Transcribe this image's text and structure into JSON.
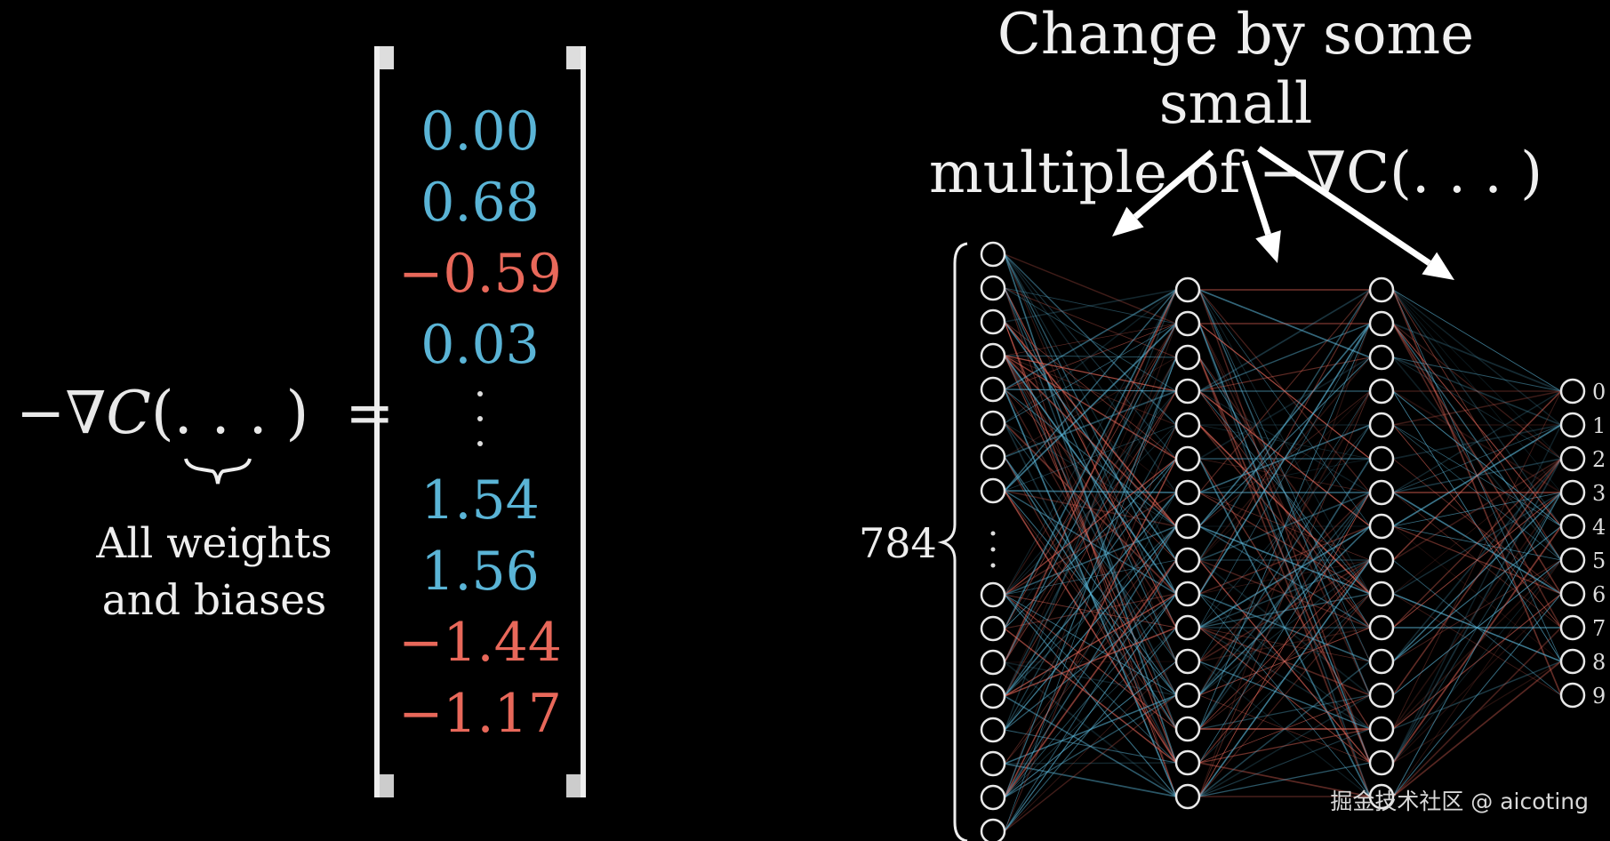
{
  "equation": {
    "minus": "−",
    "nabla": "∇",
    "cost": "C",
    "args": "(. . . )",
    "equals": "="
  },
  "caption": {
    "line1": "All weights",
    "line2": "and biases"
  },
  "gradient_vector": {
    "entries_top": [
      {
        "text": "0.00",
        "sign": "pos"
      },
      {
        "text": "0.68",
        "sign": "pos"
      },
      {
        "text": "−0.59",
        "sign": "neg"
      },
      {
        "text": "0.03",
        "sign": "pos"
      }
    ],
    "entries_bottom": [
      {
        "text": "1.54",
        "sign": "pos"
      },
      {
        "text": "1.56",
        "sign": "pos"
      },
      {
        "text": "−1.44",
        "sign": "neg"
      },
      {
        "text": "−1.17",
        "sign": "neg"
      }
    ]
  },
  "headline": {
    "line1": "Change by some small",
    "line2": "multiple of −∇C(. . . )"
  },
  "network": {
    "input_count_label": "784",
    "output_labels": [
      "0",
      "1",
      "2",
      "3",
      "4",
      "5",
      "6",
      "7",
      "8",
      "9"
    ]
  },
  "colors": {
    "positive": "#5ab4d6",
    "negative": "#e8685a",
    "node": "#e8e8e8",
    "background": "#000000"
  },
  "watermark": "掘金技术社区 @ aicoting"
}
